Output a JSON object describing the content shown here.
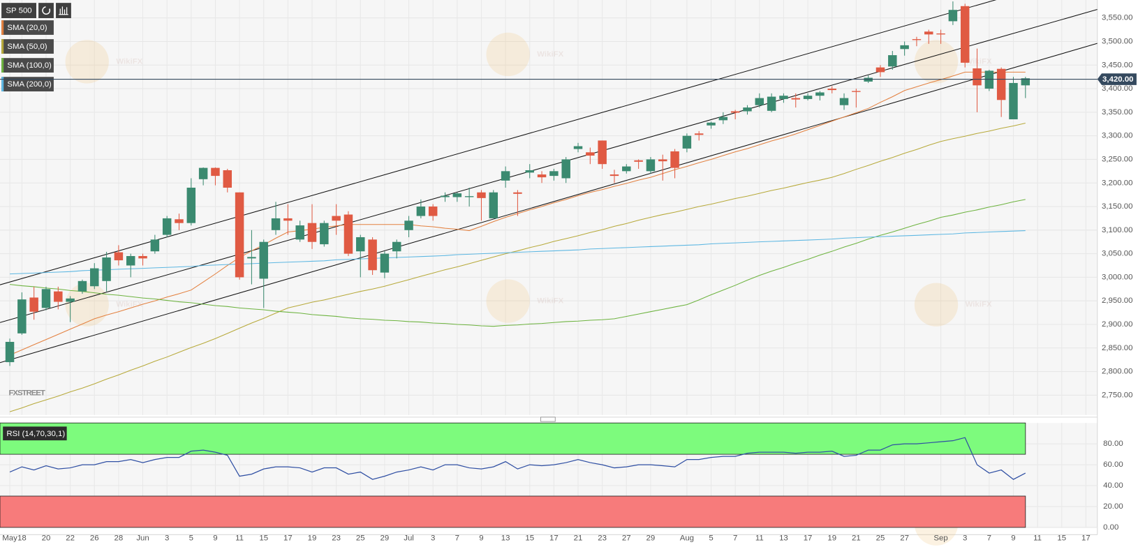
{
  "chart_data": [
    {
      "type": "candlestick",
      "title": "SP 500",
      "logo": "FXSTREET",
      "watermark": "WikiFX",
      "categories": [
        "May",
        "18",
        null,
        "20",
        null,
        "22",
        null,
        "26",
        null,
        "28",
        null,
        "Jun",
        null,
        "3",
        null,
        "5",
        null,
        "9",
        null,
        "11",
        null,
        "15",
        null,
        "17",
        null,
        "19",
        null,
        "23",
        null,
        "25",
        null,
        "29",
        null,
        "Jul",
        null,
        "3",
        null,
        "7",
        null,
        "9",
        null,
        "13",
        null,
        "15",
        null,
        "17",
        null,
        "21",
        null,
        "23",
        null,
        "27",
        null,
        "29",
        null,
        null,
        "Aug",
        null,
        "5",
        null,
        "7",
        null,
        "11",
        null,
        "13",
        null,
        "17",
        null,
        "19",
        null,
        "21",
        null,
        "25",
        null,
        "27",
        null,
        null,
        "Sep",
        null,
        "3",
        null,
        "7",
        null,
        "9",
        null,
        "11",
        null,
        "15",
        null,
        "17"
      ],
      "open": [
        2820,
        2881,
        2957,
        2935,
        2970,
        2948,
        2970,
        2981,
        2992,
        3053,
        3025,
        3045,
        3055,
        3090,
        3123,
        3115,
        3208,
        3232,
        3227,
        3180,
        3040,
        2997,
        3100,
        3125,
        3080,
        3115,
        3070,
        3130,
        3133,
        3055,
        3080,
        3010,
        3055,
        3100,
        3130,
        3150,
        3170,
        3170,
        3170,
        3180,
        3125,
        3205,
        3180,
        3222,
        3218,
        3215,
        3210,
        3272,
        3265,
        3290,
        3218,
        3225,
        3248,
        3225,
        3250,
        3267,
        3273,
        3305,
        3322,
        3333,
        3352,
        3352,
        3365,
        3353,
        3378,
        3380,
        3378,
        3385,
        3400,
        3365,
        3395,
        3415,
        3445,
        3447,
        3484,
        3505,
        3521,
        3517,
        3543,
        3575,
        3443,
        3400,
        3442,
        3335,
        3407,
        null,
        null,
        null,
        null,
        null
      ],
      "high": [
        2870,
        2968,
        2980,
        2980,
        2980,
        2960,
        2995,
        3030,
        3054,
        3068,
        3050,
        3050,
        3090,
        3130,
        3135,
        3210,
        3233,
        3233,
        3230,
        3180,
        3100,
        3080,
        3160,
        3155,
        3120,
        3155,
        3120,
        3155,
        3140,
        3090,
        3085,
        3055,
        3080,
        3130,
        3165,
        3155,
        3180,
        3180,
        3190,
        3185,
        3185,
        3235,
        3185,
        3240,
        3225,
        3230,
        3255,
        3285,
        3275,
        3290,
        3228,
        3240,
        3250,
        3255,
        3260,
        3272,
        3305,
        3310,
        3330,
        3350,
        3355,
        3365,
        3390,
        3390,
        3390,
        3390,
        3390,
        3395,
        3405,
        3390,
        3400,
        3428,
        3450,
        3480,
        3500,
        3510,
        3525,
        3525,
        3585,
        3580,
        3485,
        3440,
        3445,
        3425,
        3425,
        null,
        null,
        null,
        null,
        null
      ],
      "low": [
        2812,
        2878,
        2910,
        2930,
        2932,
        2905,
        2965,
        2975,
        2970,
        3025,
        3000,
        3025,
        3050,
        3085,
        3100,
        3110,
        3195,
        3195,
        3180,
        2995,
        2985,
        2935,
        3090,
        3090,
        3075,
        3060,
        3065,
        3090,
        3045,
        3000,
        3005,
        2998,
        3040,
        3085,
        3125,
        3120,
        3160,
        3160,
        3150,
        3120,
        3125,
        3190,
        3130,
        3210,
        3200,
        3205,
        3200,
        3265,
        3240,
        3230,
        3200,
        3220,
        3230,
        3220,
        3205,
        3210,
        3265,
        3290,
        3315,
        3325,
        3335,
        3345,
        3360,
        3350,
        3370,
        3360,
        3375,
        3375,
        3390,
        3355,
        3360,
        3412,
        3425,
        3440,
        3470,
        3490,
        3495,
        3495,
        3535,
        3445,
        3350,
        3395,
        3340,
        3335,
        3380,
        null,
        null,
        null,
        null,
        null
      ],
      "close": [
        2863,
        2953,
        2927,
        2975,
        2948,
        2955,
        2992,
        3019,
        3042,
        3036,
        3045,
        3040,
        3080,
        3125,
        3115,
        3190,
        3232,
        3215,
        3190,
        3000,
        3043,
        3075,
        3125,
        3120,
        3110,
        3075,
        3115,
        3120,
        3050,
        3085,
        3015,
        3050,
        3075,
        3120,
        3150,
        3130,
        3173,
        3178,
        3172,
        3168,
        3180,
        3225,
        3177,
        3227,
        3212,
        3225,
        3250,
        3278,
        3258,
        3240,
        3215,
        3235,
        3245,
        3250,
        3246,
        3232,
        3300,
        3302,
        3328,
        3340,
        3349,
        3360,
        3380,
        3383,
        3385,
        3377,
        3385,
        3392,
        3397,
        3380,
        3393,
        3423,
        3435,
        3471,
        3492,
        3503,
        3515,
        3515,
        3567,
        3455,
        3407,
        3438,
        3376,
        3412,
        3422,
        null,
        null,
        null,
        null,
        null
      ],
      "up_color": "#3b8a70",
      "down_color": "#e05a43",
      "series": [
        {
          "name": "SMA (20,0)",
          "color": "#e3803f",
          "values": [
            2835,
            2846,
            2857,
            2868,
            2879,
            2890,
            2901,
            2912,
            2920,
            2927,
            2935,
            2943,
            2950,
            2958,
            2965,
            2973,
            2990,
            3007,
            3025,
            3042,
            3056,
            3069,
            3083,
            3096,
            3099,
            3102,
            3106,
            3109,
            3112,
            3112,
            3112,
            3112,
            3112,
            3112,
            3109,
            3107,
            3104,
            3102,
            3099,
            3108,
            3118,
            3127,
            3135,
            3143,
            3150,
            3158,
            3165,
            3173,
            3180,
            3186,
            3193,
            3199,
            3206,
            3212,
            3220,
            3228,
            3235,
            3243,
            3250,
            3258,
            3266,
            3273,
            3281,
            3289,
            3296,
            3304,
            3313,
            3322,
            3331,
            3340,
            3349,
            3358,
            3371,
            3383,
            3396,
            3404,
            3412,
            3419,
            3427,
            3435,
            3435,
            3435,
            3435,
            3435,
            3435,
            null,
            null,
            null,
            null,
            null
          ]
        },
        {
          "name": "SMA (50,0)",
          "color": "#b7a93a",
          "values": [
            2715,
            2723,
            2732,
            2740,
            2748,
            2757,
            2765,
            2774,
            2784,
            2793,
            2803,
            2812,
            2822,
            2831,
            2841,
            2851,
            2860,
            2870,
            2881,
            2892,
            2903,
            2913,
            2924,
            2935,
            2941,
            2947,
            2952,
            2958,
            2964,
            2970,
            2975,
            2981,
            2988,
            2995,
            3002,
            3009,
            3016,
            3022,
            3029,
            3036,
            3043,
            3050,
            3056,
            3063,
            3069,
            3076,
            3082,
            3088,
            3095,
            3101,
            3108,
            3114,
            3121,
            3127,
            3133,
            3138,
            3144,
            3150,
            3155,
            3161,
            3167,
            3172,
            3178,
            3184,
            3189,
            3195,
            3201,
            3206,
            3212,
            3220,
            3229,
            3237,
            3246,
            3254,
            3263,
            3271,
            3280,
            3288,
            3294,
            3299,
            3305,
            3310,
            3316,
            3321,
            3327,
            null,
            null,
            null,
            null,
            null
          ]
        },
        {
          "name": "SMA (100,0)",
          "color": "#6db33f",
          "values": [
            2985,
            2982,
            2980,
            2977,
            2975,
            2972,
            2970,
            2967,
            2964,
            2962,
            2959,
            2956,
            2954,
            2951,
            2948,
            2946,
            2943,
            2940,
            2938,
            2935,
            2933,
            2931,
            2928,
            2926,
            2924,
            2921,
            2919,
            2917,
            2914,
            2912,
            2911,
            2909,
            2908,
            2906,
            2905,
            2903,
            2902,
            2900,
            2899,
            2897,
            2896,
            2898,
            2899,
            2901,
            2902,
            2904,
            2906,
            2907,
            2909,
            2910,
            2912,
            2917,
            2922,
            2927,
            2932,
            2937,
            2942,
            2952,
            2963,
            2973,
            2983,
            2994,
            3004,
            3013,
            3021,
            3030,
            3038,
            3047,
            3055,
            3064,
            3072,
            3081,
            3089,
            3096,
            3104,
            3112,
            3119,
            3127,
            3132,
            3138,
            3143,
            3149,
            3154,
            3160,
            3165,
            null,
            null,
            null,
            null,
            null
          ]
        },
        {
          "name": "SMA (200,0)",
          "color": "#5db7e2",
          "values": [
            3007,
            3008,
            3009,
            3010,
            3011,
            3012,
            3014,
            3015,
            3016,
            3017,
            3018,
            3019,
            3020,
            3021,
            3022,
            3023,
            3025,
            3026,
            3027,
            3028,
            3029,
            3030,
            3031,
            3032,
            3033,
            3034,
            3035,
            3037,
            3038,
            3039,
            3040,
            3041,
            3042,
            3043,
            3044,
            3045,
            3046,
            3048,
            3049,
            3050,
            3051,
            3052,
            3053,
            3054,
            3055,
            3056,
            3057,
            3058,
            3060,
            3061,
            3062,
            3063,
            3064,
            3065,
            3066,
            3067,
            3068,
            3069,
            3071,
            3072,
            3073,
            3074,
            3075,
            3076,
            3077,
            3078,
            3079,
            3080,
            3081,
            3083,
            3084,
            3085,
            3086,
            3087,
            3088,
            3089,
            3090,
            3091,
            3092,
            3094,
            3095,
            3096,
            3097,
            3098,
            3099,
            null,
            null,
            null,
            null,
            null
          ]
        }
      ],
      "trendlines": [
        [
          2984,
          3650
        ],
        [
          2904,
          3568
        ],
        [
          2819,
          3496
        ]
      ],
      "last_price": {
        "value": 3420,
        "label": "3,420.00"
      },
      "ylim": [
        2708,
        3588
      ],
      "yticks": [
        {
          "value": 2750,
          "label": "2,750.00"
        },
        {
          "value": 2800,
          "label": "2,800.00"
        },
        {
          "value": 2850,
          "label": "2,850.00"
        },
        {
          "value": 2900,
          "label": "2,900.00"
        },
        {
          "value": 2950,
          "label": "2,950.00"
        },
        {
          "value": 3000,
          "label": "3,000.00"
        },
        {
          "value": 3050,
          "label": "3,050.00"
        },
        {
          "value": 3100,
          "label": "3,100.00"
        },
        {
          "value": 3150,
          "label": "3,150.00"
        },
        {
          "value": 3200,
          "label": "3,200.00"
        },
        {
          "value": 3250,
          "label": "3,250.00"
        },
        {
          "value": 3300,
          "label": "3,300.00"
        },
        {
          "value": 3350,
          "label": "3,350.00"
        },
        {
          "value": 3400,
          "label": "3,400.00"
        },
        {
          "value": 3450,
          "label": "3,450.00"
        },
        {
          "value": 3500,
          "label": "3,500.00"
        },
        {
          "value": 3550,
          "label": "3,550.00"
        }
      ],
      "grid": true
    },
    {
      "type": "line",
      "series": [
        {
          "name": "RSI (14,70,30,1)",
          "color": "#2f4fa3",
          "values": [
            53,
            58,
            55,
            59,
            56,
            57,
            60,
            60,
            63,
            63,
            65,
            62,
            65,
            67,
            67,
            73,
            74,
            72,
            69,
            49,
            51,
            56,
            58,
            58,
            57,
            53,
            57,
            57,
            51,
            53,
            46,
            49,
            53,
            55,
            58,
            55,
            60,
            60,
            57,
            56,
            58,
            63,
            56,
            60,
            59,
            60,
            62,
            65,
            62,
            60,
            57,
            58,
            60,
            60,
            59,
            58,
            65,
            65,
            67,
            68,
            68,
            71,
            72,
            72,
            72,
            71,
            72,
            72,
            73,
            68,
            69,
            74,
            74,
            79,
            80,
            80,
            81,
            82,
            83,
            86,
            60,
            52,
            55,
            46,
            52,
            null,
            null,
            null,
            null,
            null
          ]
        }
      ],
      "bands": [
        {
          "from": 70,
          "to": 100,
          "color": "#7dfb7d"
        },
        {
          "from": 0,
          "to": 30,
          "color": "#f77b7b"
        }
      ],
      "ylim": [
        0,
        100
      ],
      "yticks": [
        {
          "value": 0,
          "label": "0.00"
        },
        {
          "value": 20,
          "label": "20.00"
        },
        {
          "value": 40,
          "label": "40.00"
        },
        {
          "value": 60,
          "label": "60.00"
        },
        {
          "value": 80,
          "label": "80.00"
        }
      ],
      "grid": true
    }
  ]
}
